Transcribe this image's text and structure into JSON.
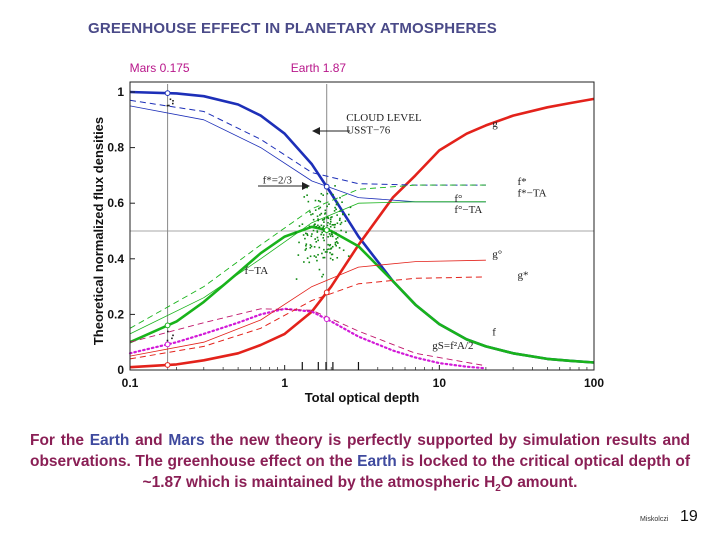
{
  "slide": {
    "title": "GREENHOUSE EFFECT IN PLANETARY ATMOSPHERES",
    "caption": {
      "p1": "For the ",
      "earth1": "Earth",
      "p2": " and ",
      "mars": "Mars",
      "p3": " the new theory is perfectly supported by simulation results and observations. The greenhouse effect on the ",
      "earth2": "Earth",
      "p4": " is locked to the critical optical depth of ~1.87 which is maintained by the atmospheric ",
      "h2o_h": "H",
      "h2o_sub": "2",
      "h2o_rest": "O amount."
    },
    "footer_name": "Miskolczi",
    "page_number": "19"
  },
  "chart_data": {
    "type": "line",
    "x_scale": "log",
    "xlim": [
      0.1,
      100
    ],
    "ylim": [
      0,
      1
    ],
    "xlabel": "Total optical depth",
    "ylabel": "Theoretical normalized flux densities",
    "x_ticks": [
      0.1,
      1,
      10,
      100
    ],
    "x_tick_labels": [
      "0.1",
      "1",
      "10",
      "100"
    ],
    "y_ticks": [
      0,
      0.2,
      0.4,
      0.6,
      0.8,
      1
    ],
    "y_tick_labels": [
      "0",
      "0.2",
      "0.4",
      "0.6",
      "0.8",
      "1"
    ],
    "vlines": [
      {
        "x": 0.175,
        "label": "Mars 0.175",
        "color": "#b8168a"
      },
      {
        "x": 1.87,
        "label": "Earth 1.87",
        "color": "#b8168a"
      }
    ],
    "hlines": [
      {
        "y": 0.5
      }
    ],
    "colors": {
      "blue": "#1d2fb8",
      "red": "#e3221b",
      "green": "#19b31b",
      "magenta": "#d21ad8",
      "pink": "#c0166c"
    },
    "series": [
      {
        "label": "f",
        "color": "#1d2fb8",
        "style": "solid",
        "width": 2.6,
        "x": [
          0.1,
          0.2,
          0.3,
          0.5,
          0.7,
          1,
          1.5,
          2,
          3,
          5,
          7,
          10,
          15,
          20,
          30,
          50,
          70,
          100
        ],
        "y": [
          1.0,
          0.995,
          0.985,
          0.955,
          0.915,
          0.85,
          0.74,
          0.635,
          0.48,
          0.32,
          0.235,
          0.165,
          0.11,
          0.085,
          0.06,
          0.04,
          0.033,
          0.027
        ]
      },
      {
        "label": "g",
        "color": "#e3221b",
        "style": "solid",
        "width": 2.6,
        "x": [
          0.1,
          0.2,
          0.3,
          0.5,
          0.7,
          1,
          1.5,
          2,
          3,
          5,
          7,
          10,
          15,
          20,
          30,
          50,
          70,
          100
        ],
        "y": [
          0.01,
          0.02,
          0.035,
          0.06,
          0.09,
          0.13,
          0.21,
          0.3,
          0.45,
          0.62,
          0.7,
          0.79,
          0.85,
          0.88,
          0.915,
          0.945,
          0.96,
          0.975
        ]
      },
      {
        "label": "f−TA",
        "color": "#19b31b",
        "style": "solid",
        "width": 2.6,
        "x": [
          0.1,
          0.2,
          0.3,
          0.5,
          0.7,
          1,
          1.5,
          2,
          3,
          5,
          7,
          10,
          15,
          20,
          30,
          50,
          70,
          100
        ],
        "y": [
          0.1,
          0.175,
          0.245,
          0.35,
          0.42,
          0.48,
          0.515,
          0.5,
          0.445,
          0.32,
          0.235,
          0.165,
          0.11,
          0.085,
          0.06,
          0.04,
          0.033,
          0.027
        ]
      },
      {
        "label": "gS=f²A/2",
        "color": "#d21ad8",
        "style": "dotted",
        "width": 2.2,
        "x": [
          0.1,
          0.2,
          0.3,
          0.5,
          0.7,
          1,
          1.5,
          2,
          3,
          5,
          7,
          10,
          15,
          20
        ],
        "y": [
          0.06,
          0.1,
          0.13,
          0.17,
          0.2,
          0.22,
          0.21,
          0.175,
          0.12,
          0.07,
          0.045,
          0.025,
          0.012,
          0.006
        ]
      },
      {
        "label": "f*",
        "color": "#1d2fb8",
        "style": "dashed",
        "width": 1.0,
        "x": [
          0.1,
          0.3,
          0.7,
          1.5,
          3,
          7,
          20
        ],
        "y": [
          0.97,
          0.93,
          0.83,
          0.71,
          0.67,
          0.665,
          0.665
        ]
      },
      {
        "label": "f°",
        "color": "#1d2fb8",
        "style": "solid",
        "width": 0.8,
        "x": [
          0.1,
          0.3,
          0.7,
          1.5,
          3,
          7,
          20
        ],
        "y": [
          0.95,
          0.9,
          0.8,
          0.68,
          0.62,
          0.605,
          0.605
        ]
      },
      {
        "label": "g°",
        "color": "#e3221b",
        "style": "solid",
        "width": 0.8,
        "x": [
          0.1,
          0.3,
          0.7,
          1.5,
          3,
          7,
          20
        ],
        "y": [
          0.05,
          0.1,
          0.18,
          0.3,
          0.37,
          0.39,
          0.395
        ]
      },
      {
        "label": "g*",
        "color": "#e3221b",
        "style": "dashed",
        "width": 1.0,
        "x": [
          0.1,
          0.3,
          0.7,
          1.5,
          3,
          7,
          20
        ],
        "y": [
          0.04,
          0.085,
          0.15,
          0.25,
          0.31,
          0.33,
          0.335
        ]
      },
      {
        "label": "f*−TA",
        "color": "#19b31b",
        "style": "dashed",
        "width": 0.9,
        "x": [
          0.1,
          0.3,
          0.7,
          1.5,
          3,
          7,
          20
        ],
        "y": [
          0.15,
          0.3,
          0.45,
          0.58,
          0.65,
          0.665,
          0.665
        ]
      },
      {
        "label": "f°−TA",
        "color": "#19b31b",
        "style": "solid",
        "width": 0.8,
        "x": [
          0.1,
          0.3,
          0.7,
          1.5,
          3,
          7,
          20
        ],
        "y": [
          0.13,
          0.26,
          0.4,
          0.53,
          0.6,
          0.605,
          0.605
        ]
      },
      {
        "label": "gS*",
        "color": "#c0166c",
        "style": "dashed",
        "width": 0.9,
        "x": [
          0.1,
          0.3,
          0.7,
          1.5,
          3,
          7,
          20
        ],
        "y": [
          0.1,
          0.17,
          0.22,
          0.215,
          0.14,
          0.06,
          0.015
        ]
      }
    ],
    "annotations": [
      {
        "text": "CLOUD LEVEL",
        "x": 2.5,
        "y": 0.895
      },
      {
        "text": "USST−76",
        "x": 2.5,
        "y": 0.85
      },
      {
        "text": "g",
        "x": 22,
        "y": 0.875
      },
      {
        "text": "f*=2/3",
        "x": 0.72,
        "y": 0.67
      },
      {
        "text": "f*",
        "x": 32,
        "y": 0.665
      },
      {
        "text": "f*−TA",
        "x": 32,
        "y": 0.625
      },
      {
        "text": "f°",
        "x": 12.5,
        "y": 0.605
      },
      {
        "text": "f°−TA",
        "x": 12.5,
        "y": 0.565
      },
      {
        "text": "f−TA",
        "x": 0.55,
        "y": 0.345
      },
      {
        "text": "g°",
        "x": 22,
        "y": 0.405
      },
      {
        "text": "g*",
        "x": 32,
        "y": 0.33
      },
      {
        "text": "f",
        "x": 22,
        "y": 0.125
      },
      {
        "text": "gS=f²A/2",
        "x": 9,
        "y": 0.075
      }
    ]
  }
}
